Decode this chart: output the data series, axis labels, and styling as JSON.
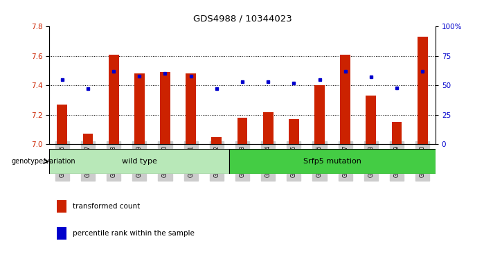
{
  "title": "GDS4988 / 10344023",
  "samples": [
    "GSM921326",
    "GSM921327",
    "GSM921328",
    "GSM921329",
    "GSM921330",
    "GSM921331",
    "GSM921332",
    "GSM921333",
    "GSM921334",
    "GSM921335",
    "GSM921336",
    "GSM921337",
    "GSM921338",
    "GSM921339",
    "GSM921340"
  ],
  "transformed_count": [
    7.27,
    7.07,
    7.61,
    7.48,
    7.49,
    7.48,
    7.05,
    7.18,
    7.22,
    7.17,
    7.4,
    7.61,
    7.33,
    7.15,
    7.73
  ],
  "percentile_rank": [
    55,
    47,
    62,
    58,
    60,
    58,
    47,
    53,
    53,
    52,
    55,
    62,
    57,
    48,
    62
  ],
  "ylim_left": [
    7.0,
    7.8
  ],
  "ylim_right": [
    0,
    100
  ],
  "yticks_left": [
    7.0,
    7.2,
    7.4,
    7.6,
    7.8
  ],
  "yticks_right": [
    0,
    25,
    50,
    75,
    100
  ],
  "ytick_labels_right": [
    "0",
    "25",
    "50",
    "75",
    "100%"
  ],
  "bar_color": "#cc2200",
  "percentile_color": "#0000cc",
  "bar_bottom": 7.0,
  "genotype_groups": [
    {
      "label": "wild type",
      "start": 0,
      "end": 7,
      "color": "#b8e8b8"
    },
    {
      "label": "Srfp5 mutation",
      "start": 7,
      "end": 15,
      "color": "#44cc44"
    }
  ],
  "legend_items": [
    {
      "label": "transformed count",
      "color": "#cc2200"
    },
    {
      "label": "percentile rank within the sample",
      "color": "#0000cc"
    }
  ],
  "genotype_label": "genotype/variation",
  "ylabel_left_color": "#cc2200",
  "ylabel_right_color": "#0000cc",
  "xtick_bg_color": "#cccccc"
}
